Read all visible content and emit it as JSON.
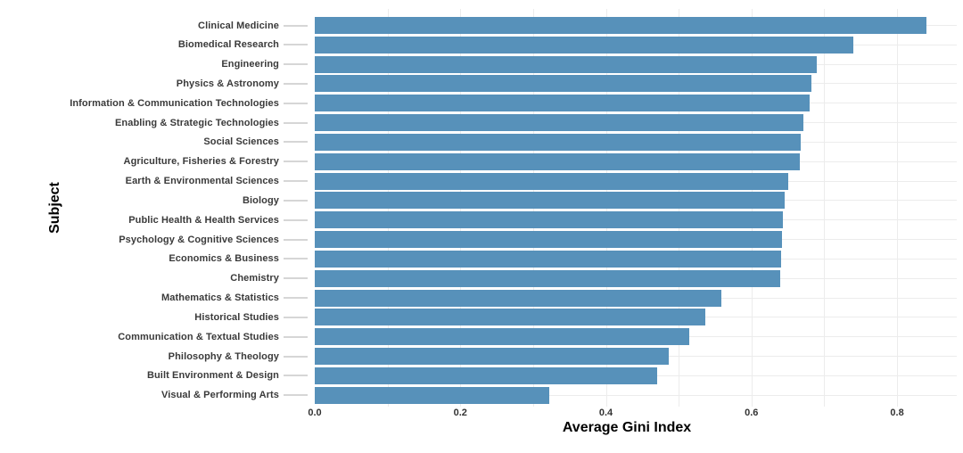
{
  "chart_data": {
    "type": "bar",
    "orientation": "horizontal",
    "title": "",
    "xlabel": "Average Gini Index",
    "ylabel": "Subject",
    "categories": [
      "Clinical Medicine",
      "Biomedical Research",
      "Engineering",
      "Physics & Astronomy",
      "Information & Communication Technologies",
      "Enabling & Strategic Technologies",
      "Social Sciences",
      "Agriculture, Fisheries & Forestry",
      "Earth & Environmental Sciences",
      "Biology",
      "Public Health & Health Services",
      "Psychology & Cognitive Sciences",
      "Economics & Business",
      "Chemistry",
      "Mathematics & Statistics",
      "Historical Studies",
      "Communication & Textual Studies",
      "Philosophy & Theology",
      "Built Environment & Design",
      "Visual & Performing Arts"
    ],
    "values": [
      0.84,
      0.74,
      0.69,
      0.682,
      0.68,
      0.671,
      0.668,
      0.667,
      0.65,
      0.645,
      0.643,
      0.642,
      0.641,
      0.64,
      0.558,
      0.536,
      0.514,
      0.486,
      0.471,
      0.322
    ],
    "xlim": [
      0,
      0.882
    ],
    "xticks": [
      0.0,
      0.2,
      0.4,
      0.6,
      0.8
    ],
    "xtick_labels": [
      "0.0",
      "0.2",
      "0.4",
      "0.6",
      "0.8"
    ],
    "grid": true,
    "minor_grid_step": 0.1,
    "legend_position": "none",
    "colors": {
      "bar": "#5791BA",
      "gridline": "#ececec",
      "leader_tick": "#d6d6d6",
      "category_label": "#3a3a3a",
      "tick_label": "#333333",
      "axis_title": "#000000",
      "background": "#ffffff"
    }
  }
}
